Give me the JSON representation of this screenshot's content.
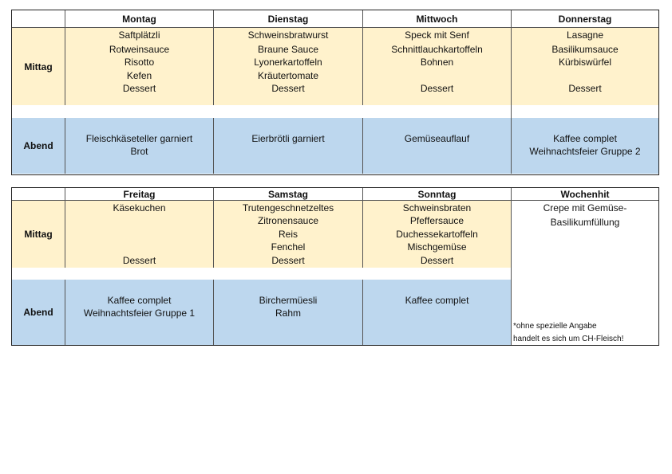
{
  "week1": {
    "days": [
      "Montag",
      "Dienstag",
      "Mittwoch",
      "Donnerstag"
    ],
    "mittag_label": "Mittag",
    "abend_label": "Abend",
    "mittag": [
      [
        "Saftplätzli",
        "Rotweinsauce",
        "Risotto",
        "Kefen",
        "Dessert"
      ],
      [
        "Schweinsbratwurst",
        "Braune Sauce",
        "Lyonerkartoffeln",
        "Kräutertomate",
        "Dessert"
      ],
      [
        "Speck mit Senf",
        "Schnittlauchkartoffeln",
        "Bohnen",
        "",
        "Dessert"
      ],
      [
        "Lasagne",
        "Basilikumsauce",
        "Kürbiswürfel",
        "",
        "Dessert"
      ]
    ],
    "abend": [
      [
        "Fleischkäseteller garniert",
        "Brot"
      ],
      [
        "Eierbrötli garniert",
        ""
      ],
      [
        "Gemüseauflauf",
        ""
      ],
      [
        "Kaffee complet",
        "Weihnachtsfeier Gruppe 2"
      ]
    ]
  },
  "week2": {
    "days": [
      "Freitag",
      "Samstag",
      "Sonntag",
      "Wochenhit"
    ],
    "mittag_label": "Mittag",
    "abend_label": "Abend",
    "mittag": [
      [
        "Käsekuchen",
        "",
        "",
        "",
        "Dessert"
      ],
      [
        "Trutengeschnetzeltes",
        "Zitronensauce",
        "Reis",
        "Fenchel",
        "Dessert"
      ],
      [
        "Schweinsbraten",
        "Pfeffersauce",
        "Duchessekartoffeln",
        "Mischgemüse",
        "Dessert"
      ]
    ],
    "abend": [
      [
        "Kaffee complet",
        "Weihnachtsfeier Gruppe 1"
      ],
      [
        "Birchermüesli",
        "Rahm"
      ],
      [
        "Kaffee complet",
        ""
      ]
    ],
    "wochenhit": [
      "Crepe mit Gemüse-",
      "Basilikumfüllung"
    ],
    "note": [
      "*ohne spezielle Angabe",
      "handelt es sich um CH-Fleisch!"
    ]
  }
}
